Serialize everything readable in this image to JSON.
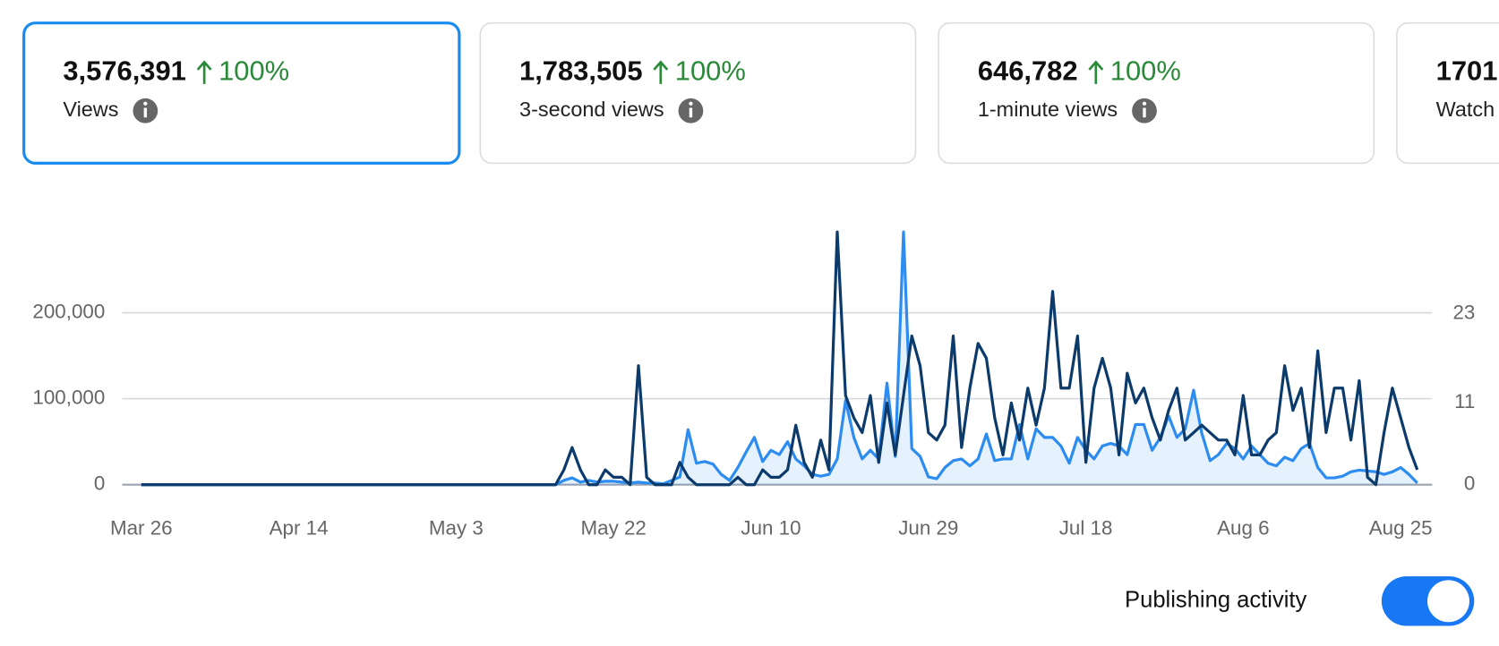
{
  "cards": [
    {
      "value": "3,576,391",
      "change": "100%",
      "label": "Views"
    },
    {
      "value": "1,783,505",
      "change": "100%",
      "label": "3-second views"
    },
    {
      "value": "646,782",
      "change": "100%",
      "label": "1-minute views"
    },
    {
      "value": "1701",
      "label": "Watch"
    }
  ],
  "toggle": {
    "label": "Publishing activity"
  },
  "chart_data": {
    "type": "line",
    "categories": [
      "Mar 26",
      null,
      null,
      null,
      null,
      null,
      null,
      null,
      null,
      null,
      null,
      null,
      null,
      null,
      null,
      null,
      null,
      null,
      null,
      "Apr 14",
      null,
      null,
      null,
      null,
      null,
      null,
      null,
      null,
      null,
      null,
      null,
      null,
      null,
      null,
      null,
      null,
      null,
      null,
      "May 3",
      null,
      null,
      null,
      null,
      null,
      null,
      null,
      null,
      null,
      null,
      null,
      null,
      null,
      null,
      null,
      null,
      null,
      null,
      "May 22",
      null,
      null,
      null,
      null,
      null,
      null,
      null,
      null,
      null,
      null,
      null,
      null,
      null,
      null,
      null,
      null,
      null,
      null,
      "Jun 10",
      null,
      null,
      null,
      null,
      null,
      null,
      null,
      null,
      null,
      null,
      null,
      null,
      null,
      null,
      null,
      null,
      null,
      null,
      "Jun 29",
      null,
      null,
      null,
      null,
      null,
      null,
      null,
      null,
      null,
      null,
      null,
      null,
      null,
      null,
      null,
      null,
      null,
      null,
      "Jul 18",
      null,
      null,
      null,
      null,
      null,
      null,
      null,
      null,
      null,
      null,
      null,
      null,
      null,
      null,
      null,
      null,
      null,
      null,
      "Aug 6",
      null,
      null,
      null,
      null,
      null,
      null,
      null,
      null,
      null,
      null,
      null,
      null,
      null,
      null,
      null,
      null,
      null,
      null,
      "Aug 25",
      null,
      null
    ],
    "series": [
      {
        "color": "#2d8cf0",
        "fill": true,
        "values": [
          0,
          0,
          0,
          0,
          0,
          0,
          0,
          0,
          0,
          0,
          0,
          0,
          0,
          0,
          0,
          0,
          0,
          0,
          0,
          0,
          0,
          0,
          0,
          0,
          0,
          0,
          0,
          0,
          0,
          0,
          0,
          0,
          0,
          0,
          0,
          0,
          0,
          0,
          0,
          0,
          0,
          0,
          0,
          0,
          0,
          0,
          0,
          0,
          0,
          0,
          0,
          5000,
          8000,
          3000,
          5000,
          3000,
          4000,
          4000,
          3000,
          2000,
          3000,
          2000,
          2000,
          1000,
          5000,
          9000,
          64000,
          25000,
          27000,
          24000,
          12000,
          5000,
          20000,
          38000,
          55000,
          27000,
          40000,
          35000,
          50000,
          30000,
          22000,
          12000,
          10000,
          12000,
          30000,
          98000,
          55000,
          30000,
          40000,
          30000,
          118000,
          33000,
          294000,
          42000,
          33000,
          9000,
          7000,
          20000,
          28000,
          30000,
          22000,
          30000,
          59000,
          28000,
          30000,
          30000,
          70000,
          30000,
          65000,
          55000,
          55000,
          45000,
          25000,
          55000,
          40000,
          30000,
          45000,
          48000,
          45000,
          35000,
          70000,
          70000,
          40000,
          55000,
          80000,
          55000,
          65000,
          110000,
          60000,
          28000,
          35000,
          48000,
          42000,
          30000,
          45000,
          35000,
          25000,
          22000,
          32000,
          28000,
          42000,
          48000,
          20000,
          8000,
          8000,
          10000,
          15000,
          17000,
          16000,
          15000,
          12000,
          15000,
          20000,
          12000,
          2000
        ]
      },
      {
        "color": "#0b3a6b",
        "axis": "y2",
        "values": [
          0,
          0,
          0,
          0,
          0,
          0,
          0,
          0,
          0,
          0,
          0,
          0,
          0,
          0,
          0,
          0,
          0,
          0,
          0,
          0,
          0,
          0,
          0,
          0,
          0,
          0,
          0,
          0,
          0,
          0,
          0,
          0,
          0,
          0,
          0,
          0,
          0,
          0,
          0,
          0,
          0,
          0,
          0,
          0,
          0,
          0,
          0,
          0,
          0,
          0,
          0,
          2,
          5,
          2,
          0,
          0,
          2,
          1,
          1,
          0,
          16,
          1,
          0,
          0,
          0,
          3,
          1,
          0,
          0,
          0,
          0,
          0,
          1,
          0,
          0,
          2,
          1,
          1,
          2,
          8,
          3,
          1,
          6,
          2,
          34,
          12,
          9,
          7,
          12,
          3,
          11,
          4,
          12,
          20,
          16,
          7,
          6,
          8,
          20,
          5,
          13,
          19,
          17,
          9,
          4,
          11,
          6,
          13,
          8,
          13,
          26,
          13,
          13,
          20,
          3,
          13,
          17,
          13,
          4,
          15,
          11,
          13,
          9,
          6,
          10,
          13,
          6,
          7,
          8,
          7,
          6,
          6,
          4,
          12,
          4,
          4,
          6,
          7,
          16,
          10,
          13,
          5,
          18,
          7,
          13,
          13,
          6,
          14,
          1,
          0,
          7,
          13,
          9,
          5,
          2
        ]
      }
    ],
    "ylim": [
      0,
      294000
    ],
    "yticks": [
      0,
      {
        "value": 100000,
        "label": "100,000"
      },
      {
        "value": 200000,
        "label": "200,000"
      }
    ],
    "y2lim": [
      0,
      34
    ],
    "y2ticks": [
      0,
      11,
      23
    ],
    "grid": true
  }
}
